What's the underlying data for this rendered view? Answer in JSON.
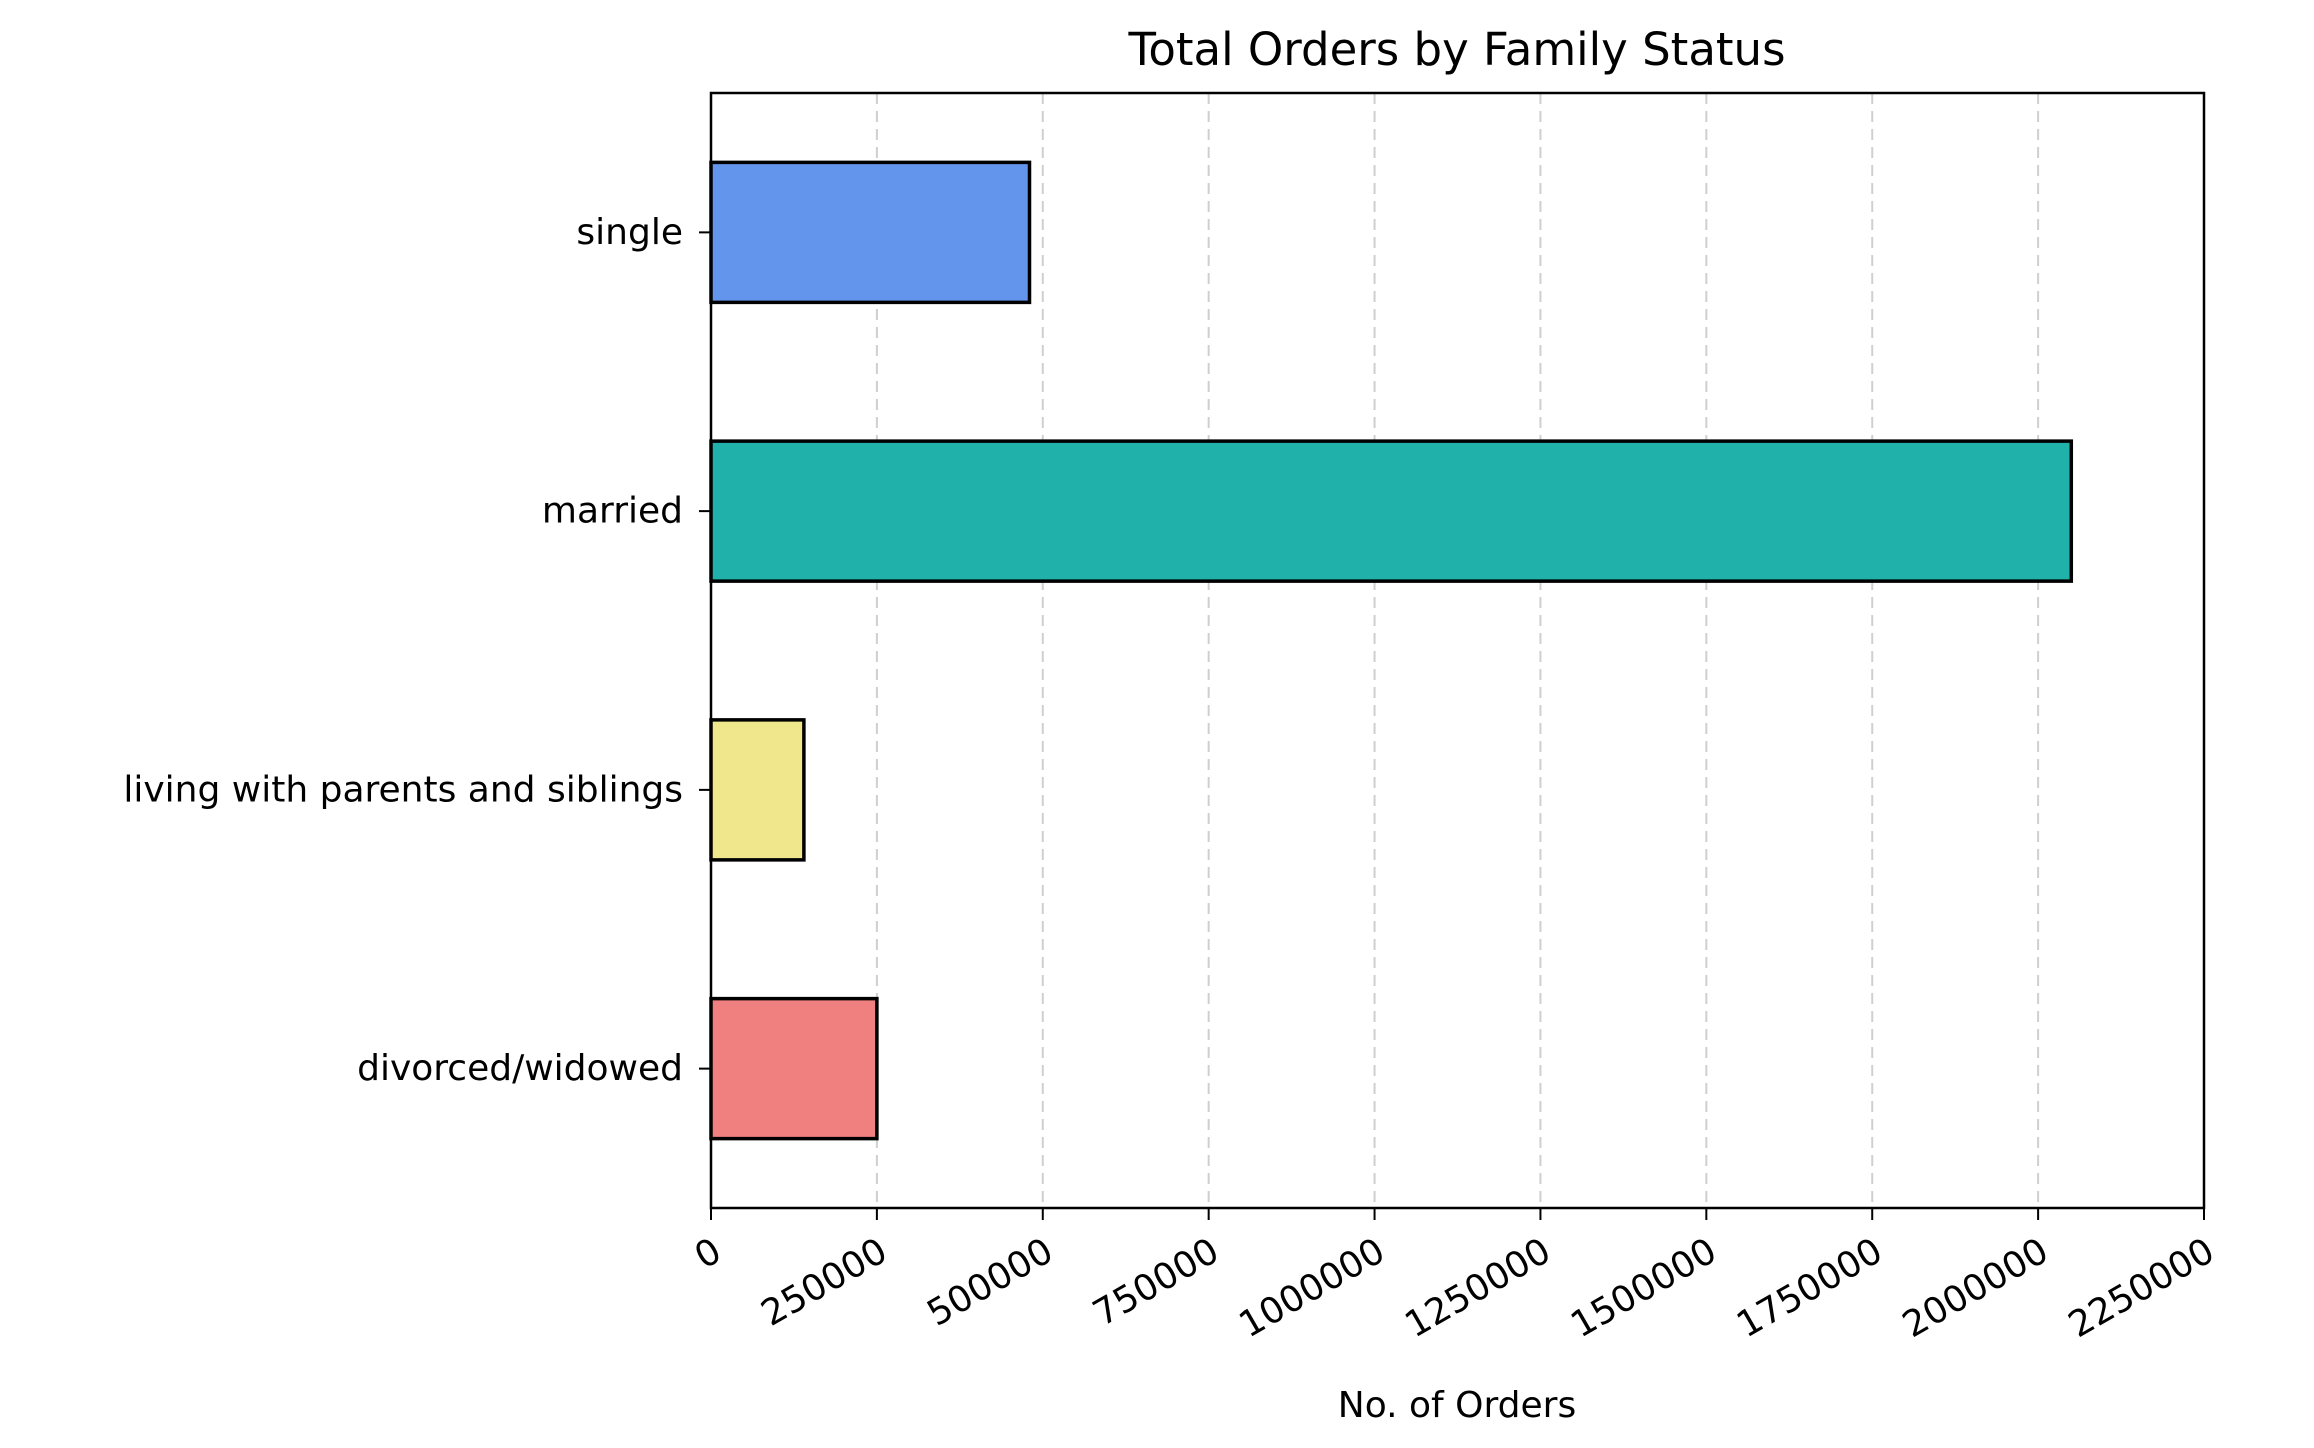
{
  "chart_data": {
    "type": "bar",
    "orientation": "horizontal",
    "title": "Total Orders by Family Status",
    "xlabel": "No. of Orders",
    "ylabel": "",
    "categories": [
      "single",
      "married",
      "living with parents and siblings",
      "divorced/widowed"
    ],
    "values": [
      480000,
      2050000,
      140000,
      250000
    ],
    "colors": [
      "#6495ed",
      "#20b2aa",
      "#f0e68c",
      "#f08080"
    ],
    "xlim": [
      0,
      2250000
    ],
    "xticks": [
      0,
      250000,
      500000,
      750000,
      1000000,
      1250000,
      1500000,
      1750000,
      2000000,
      2250000
    ],
    "xtick_labels": [
      "0",
      "250000",
      "500000",
      "750000",
      "1000000",
      "1250000",
      "1500000",
      "1750000",
      "2000000",
      "2250000"
    ],
    "xtick_rotation": 30,
    "grid": "vertical dashed",
    "legend": "none"
  }
}
